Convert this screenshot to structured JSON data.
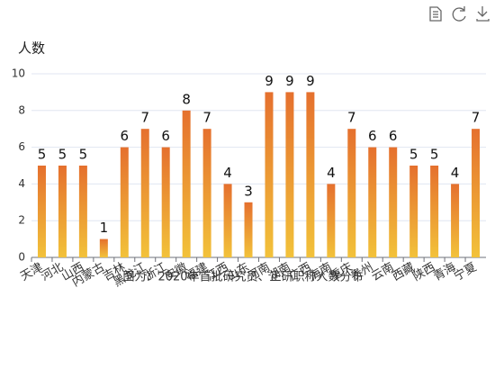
{
  "chart_data": {
    "type": "bar",
    "y_axis_name": "人数",
    "source": "图为：2020年首批研究员、正研职称人数分布",
    "categories": [
      "天津",
      "河北",
      "山西",
      "内蒙古",
      "吉林",
      "黑龙江",
      "浙江",
      "安徽",
      "福建",
      "江西",
      "山东",
      "河南",
      "湖南",
      "广西",
      "海南",
      "重庆",
      "贵州",
      "云南",
      "西藏",
      "陕西",
      "青海",
      "宁夏"
    ],
    "values": [
      5,
      5,
      5,
      1,
      6,
      7,
      6,
      8,
      7,
      4,
      3,
      9,
      9,
      9,
      4,
      7,
      6,
      6,
      5,
      5,
      4,
      7
    ],
    "color": [
      "#e5702e",
      "#f2c23a"
    ],
    "ylim": [
      0,
      10
    ],
    "yticks": [
      0,
      2,
      4,
      6,
      8,
      10
    ],
    "grid": true
  }
}
